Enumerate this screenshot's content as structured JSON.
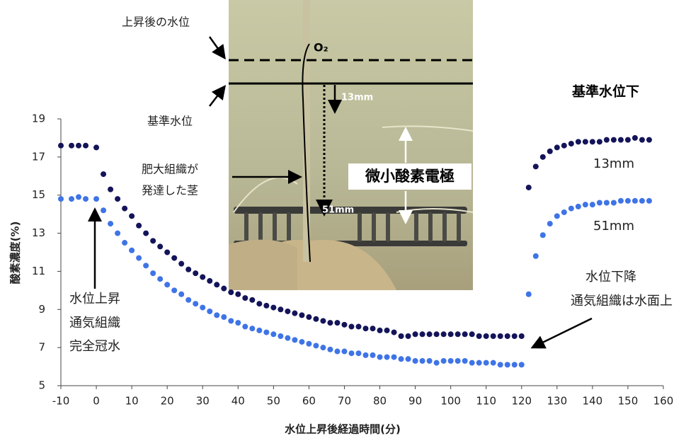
{
  "chart_data": {
    "type": "scatter",
    "x_label": "水位上昇後経過時間(分)",
    "y_label": "酸素濃度(%)",
    "xlim": [
      -10,
      160
    ],
    "xticks": [
      -10,
      0,
      10,
      20,
      30,
      40,
      50,
      60,
      70,
      80,
      90,
      100,
      110,
      120,
      130,
      140,
      150,
      160
    ],
    "ylim": [
      5,
      19
    ],
    "yticks": [
      5,
      7,
      9,
      11,
      13,
      15,
      17,
      19
    ],
    "x": [
      -10,
      -7,
      -5,
      -3,
      0,
      2,
      4,
      6,
      8,
      10,
      12,
      14,
      16,
      18,
      20,
      22,
      24,
      26,
      28,
      30,
      32,
      34,
      36,
      38,
      40,
      42,
      44,
      46,
      48,
      50,
      52,
      54,
      56,
      58,
      60,
      62,
      64,
      66,
      68,
      70,
      72,
      74,
      76,
      78,
      80,
      82,
      84,
      86,
      88,
      90,
      92,
      94,
      96,
      98,
      100,
      102,
      104,
      106,
      108,
      110,
      112,
      114,
      116,
      118,
      120,
      122,
      124,
      126,
      128,
      130,
      132,
      134,
      136,
      138,
      140,
      142,
      144,
      146,
      148,
      150,
      152,
      154,
      156
    ],
    "series": [
      {
        "name": "13mm",
        "color": "#14145a",
        "values": [
          17.6,
          17.6,
          17.6,
          17.6,
          17.5,
          16.1,
          15.3,
          14.8,
          14.3,
          13.9,
          13.4,
          13.0,
          12.6,
          12.3,
          12.0,
          11.7,
          11.4,
          11.1,
          10.9,
          10.7,
          10.5,
          10.3,
          10.1,
          9.9,
          9.8,
          9.6,
          9.5,
          9.3,
          9.2,
          9.1,
          9.0,
          8.9,
          8.8,
          8.7,
          8.6,
          8.5,
          8.4,
          8.3,
          8.3,
          8.2,
          8.1,
          8.1,
          8.0,
          8.0,
          7.9,
          7.9,
          7.8,
          7.6,
          7.6,
          7.7,
          7.7,
          7.7,
          7.7,
          7.7,
          7.7,
          7.7,
          7.7,
          7.7,
          7.6,
          7.6,
          7.6,
          7.6,
          7.6,
          7.6,
          7.6,
          15.4,
          16.5,
          17.0,
          17.3,
          17.5,
          17.6,
          17.7,
          17.8,
          17.8,
          17.8,
          17.8,
          17.9,
          17.9,
          17.9,
          17.9,
          18.0,
          17.9,
          17.9
        ]
      },
      {
        "name": "51mm",
        "color": "#3f74e6",
        "values": [
          14.8,
          14.8,
          14.9,
          14.8,
          14.8,
          14.2,
          13.5,
          13.0,
          12.5,
          12.1,
          11.7,
          11.3,
          10.9,
          10.6,
          10.3,
          10.0,
          9.8,
          9.5,
          9.3,
          9.1,
          8.9,
          8.7,
          8.6,
          8.4,
          8.3,
          8.1,
          8.0,
          7.9,
          7.8,
          7.7,
          7.6,
          7.5,
          7.4,
          7.3,
          7.2,
          7.1,
          7.0,
          6.9,
          6.8,
          6.8,
          6.7,
          6.7,
          6.6,
          6.6,
          6.5,
          6.5,
          6.5,
          6.4,
          6.4,
          6.3,
          6.3,
          6.3,
          6.2,
          6.3,
          6.3,
          6.3,
          6.3,
          6.2,
          6.2,
          6.2,
          6.2,
          6.1,
          6.1,
          6.1,
          6.1,
          9.8,
          11.8,
          12.9,
          13.5,
          13.9,
          14.1,
          14.3,
          14.4,
          14.5,
          14.5,
          14.6,
          14.6,
          14.6,
          14.7,
          14.7,
          14.7,
          14.7,
          14.7
        ]
      }
    ],
    "annotations": [
      "上昇後の水位",
      "基準水位",
      "肥大組織が",
      "発達した茎",
      "O₂",
      "13mm",
      "51mm",
      "微小酸素電極",
      "基準水位下",
      "水位上昇",
      "通気組織",
      "完全冠水",
      "水位下降",
      "通気組織は水面上"
    ]
  }
}
